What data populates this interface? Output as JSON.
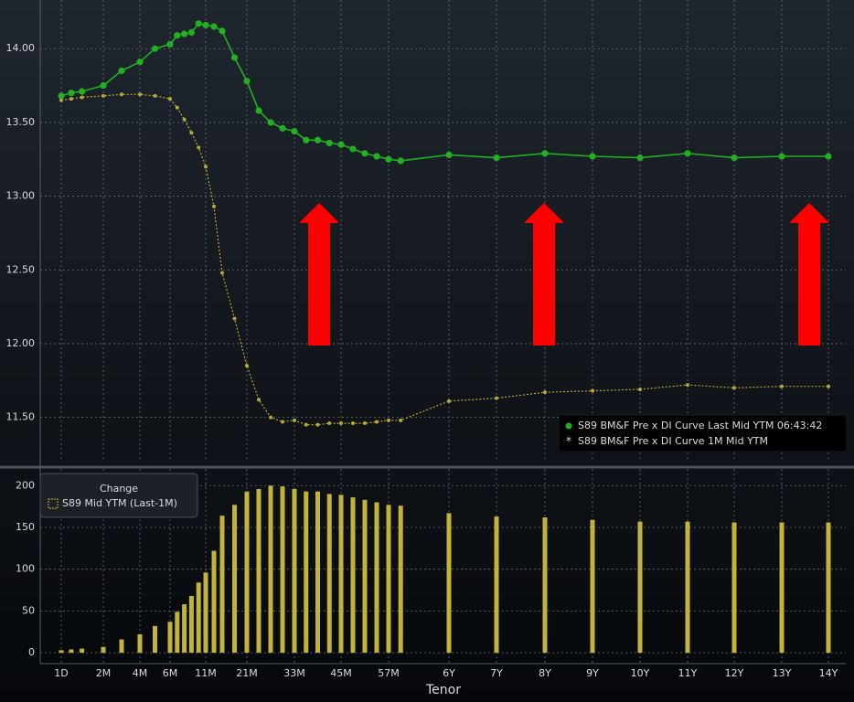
{
  "chart_data": [
    {
      "type": "line",
      "x": [
        0.033,
        0.5,
        1,
        2,
        3,
        4,
        5,
        6,
        7,
        8,
        9,
        10,
        11,
        13,
        15,
        18,
        21,
        24,
        27,
        30,
        33,
        36,
        39,
        42,
        45,
        48,
        51,
        54,
        57,
        60,
        72,
        84,
        96,
        108,
        120,
        132,
        144,
        156,
        168
      ],
      "series": [
        {
          "name": "S89 BM&F Pre x DI Curve Last Mid YTM 06:43:42",
          "color": "#22b022",
          "values": [
            13.68,
            13.7,
            13.71,
            13.75,
            13.85,
            13.91,
            14.0,
            14.03,
            14.09,
            14.1,
            14.11,
            14.17,
            14.16,
            14.15,
            14.12,
            13.94,
            13.78,
            13.58,
            13.5,
            13.46,
            13.44,
            13.38,
            13.38,
            13.36,
            13.35,
            13.32,
            13.29,
            13.27,
            13.25,
            13.24,
            13.28,
            13.26,
            13.29,
            13.27,
            13.26,
            13.29,
            13.26,
            13.27,
            13.27
          ]
        },
        {
          "name": "S89 BM&F Pre x DI Curve 1M Mid YTM",
          "color": "#b8a838",
          "values": [
            13.65,
            13.66,
            13.67,
            13.68,
            13.69,
            13.69,
            13.68,
            13.66,
            13.6,
            13.52,
            13.43,
            13.33,
            13.2,
            12.93,
            12.48,
            12.17,
            11.85,
            11.62,
            11.5,
            11.47,
            11.48,
            11.45,
            11.45,
            11.46,
            11.46,
            11.46,
            11.46,
            11.47,
            11.48,
            11.48,
            11.61,
            11.63,
            11.67,
            11.68,
            11.69,
            11.72,
            11.7,
            11.71,
            11.71
          ]
        }
      ],
      "ylim": [
        11.2,
        14.33
      ],
      "yticks": [
        {
          "value": 11.5,
          "label": "11.50"
        },
        {
          "value": 12,
          "label": "12.00"
        },
        {
          "value": 12.5,
          "label": "12.50"
        },
        {
          "value": 13,
          "label": "13.00"
        },
        {
          "value": 13.5,
          "label": "13.50"
        },
        {
          "value": 14,
          "label": "14.00"
        }
      ],
      "grid": true
    },
    {
      "type": "bar",
      "legend_title": "Change",
      "xlabel": "Tenor",
      "x": [
        0.033,
        0.5,
        1,
        2,
        3,
        4,
        5,
        6,
        7,
        8,
        9,
        10,
        11,
        13,
        15,
        18,
        21,
        24,
        27,
        30,
        33,
        36,
        39,
        42,
        45,
        48,
        51,
        54,
        57,
        60,
        72,
        84,
        96,
        108,
        120,
        132,
        144,
        156,
        168
      ],
      "series": [
        {
          "name": "S89 Mid YTM (Last-1M)",
          "color": "#c2b43a",
          "values": [
            3,
            4,
            5,
            7,
            16,
            22,
            32,
            37,
            49,
            58,
            68,
            84,
            96,
            122,
            164,
            177,
            193,
            196,
            200,
            199,
            196,
            193,
            193,
            190,
            189,
            186,
            183,
            180,
            177,
            176,
            167,
            163,
            162,
            159,
            157,
            157,
            156,
            156,
            156
          ]
        }
      ],
      "ylim": [
        -13,
        220
      ],
      "yticks": [
        0,
        50,
        100,
        150,
        200
      ],
      "xticks": [
        {
          "value": 0.033,
          "label": "1D"
        },
        {
          "value": 2,
          "label": "2M"
        },
        {
          "value": 4,
          "label": "4M"
        },
        {
          "value": 6,
          "label": "6M"
        },
        {
          "value": 11,
          "label": "11M"
        },
        {
          "value": 21,
          "label": "21M"
        },
        {
          "value": 33,
          "label": "33M"
        },
        {
          "value": 45,
          "label": "45M"
        },
        {
          "value": 57,
          "label": "57M"
        },
        {
          "value": 72,
          "label": "6Y"
        },
        {
          "value": 84,
          "label": "7Y"
        },
        {
          "value": 96,
          "label": "8Y"
        },
        {
          "value": 108,
          "label": "9Y"
        },
        {
          "value": 120,
          "label": "10Y"
        },
        {
          "value": 132,
          "label": "11Y"
        },
        {
          "value": 144,
          "label": "12Y"
        },
        {
          "value": 156,
          "label": "13Y"
        },
        {
          "value": 168,
          "label": "14Y"
        }
      ],
      "grid": true
    }
  ]
}
